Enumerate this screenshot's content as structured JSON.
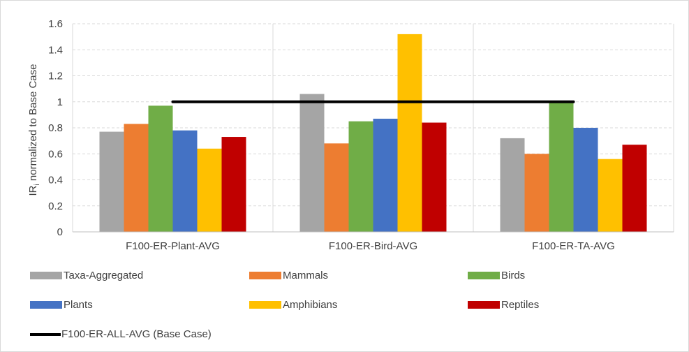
{
  "chart_data": {
    "type": "bar",
    "title": "",
    "ylabel": "IR",
    "ylabel_subscript": "i",
    "ylabel_suffix": " normalized to Base Case",
    "xlabel": "",
    "ylim": [
      0,
      1.6
    ],
    "yticks": [
      "0",
      "0.2",
      "0.4",
      "0.6",
      "0.8",
      "1",
      "1.2",
      "1.4",
      "1.6"
    ],
    "grid": true,
    "legend_position": "bottom",
    "categories": [
      "F100-ER-Plant-AVG",
      "F100-ER-Bird-AVG",
      "F100-ER-TA-AVG"
    ],
    "series": [
      {
        "name": "Taxa-Aggregated",
        "color": "#a5a5a5",
        "values": [
          0.77,
          1.06,
          0.72
        ]
      },
      {
        "name": "Mammals",
        "color": "#ed7d31",
        "values": [
          0.83,
          0.68,
          0.6
        ]
      },
      {
        "name": "Birds",
        "color": "#70ad47",
        "values": [
          0.97,
          0.85,
          1.0
        ]
      },
      {
        "name": "Plants",
        "color": "#4472c4",
        "values": [
          0.78,
          0.87,
          0.8
        ]
      },
      {
        "name": "Amphibians",
        "color": "#ffc000",
        "values": [
          0.64,
          1.52,
          0.56
        ]
      },
      {
        "name": "Reptiles",
        "color": "#c00000",
        "values": [
          0.73,
          0.84,
          0.67
        ]
      }
    ],
    "reference_line": {
      "name": "F100-ER-ALL-AVG (Base Case)",
      "value": 1.0,
      "color": "#000000"
    }
  }
}
